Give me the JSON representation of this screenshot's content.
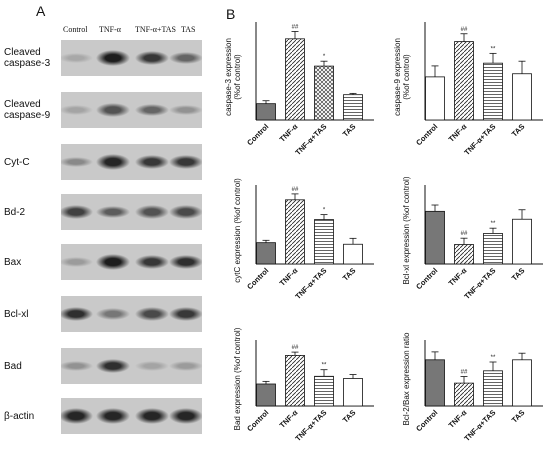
{
  "panel_a": {
    "letter": "A",
    "columns": [
      "Control",
      "TNF-α",
      "TNF-α+TAS",
      "TAS"
    ],
    "blots": [
      {
        "label_lines": [
          "Cleaved",
          "caspase-3"
        ],
        "intensities": [
          0.18,
          0.95,
          0.8,
          0.55
        ]
      },
      {
        "label_lines": [
          "Cleaved",
          "caspase-9"
        ],
        "intensities": [
          0.2,
          0.65,
          0.55,
          0.3
        ]
      },
      {
        "label_lines": [
          "Cyt-C"
        ],
        "intensities": [
          0.35,
          0.9,
          0.8,
          0.8
        ]
      },
      {
        "label_lines": [
          "Bd-2"
        ],
        "intensities": [
          0.75,
          0.6,
          0.65,
          0.7
        ]
      },
      {
        "label_lines": [
          "Bax"
        ],
        "intensities": [
          0.25,
          0.95,
          0.8,
          0.85
        ]
      },
      {
        "label_lines": [
          "Bcl-xl"
        ],
        "intensities": [
          0.85,
          0.45,
          0.7,
          0.8
        ]
      },
      {
        "label_lines": [
          "Bad"
        ],
        "intensities": [
          0.3,
          0.85,
          0.2,
          0.25
        ]
      },
      {
        "label_lines": [
          "β-actin"
        ],
        "intensities": [
          0.9,
          0.9,
          0.9,
          0.9
        ]
      }
    ]
  },
  "panel_b": {
    "letter": "B"
  },
  "chart_data": [
    {
      "type": "bar",
      "categories": [
        "Control",
        "TNF-α",
        "TNF-α+TAS",
        "TAS"
      ],
      "values": [
        100,
        497,
        330,
        155
      ],
      "errors": [
        18,
        45,
        30,
        8
      ],
      "sig": [
        "",
        "##",
        "*",
        ""
      ],
      "ylabel": "caspase-3 expression\n(%of control)",
      "ylim": [
        0,
        600
      ],
      "patterns": [
        "solid",
        "hatch",
        "cross",
        "hlines"
      ]
    },
    {
      "type": "bar",
      "categories": [
        "Control",
        "TNF-α",
        "TNF-α+TAS",
        "TAS"
      ],
      "values": [
        110,
        200,
        145,
        118
      ],
      "errors": [
        28,
        20,
        25,
        32
      ],
      "sig": [
        "",
        "##",
        "**",
        ""
      ],
      "ylabel": "caspase-9 expression\n(%of control)",
      "ylim": [
        0,
        250
      ],
      "patterns": [
        "white",
        "hatch",
        "hlines",
        "white"
      ]
    },
    {
      "type": "bar",
      "categories": [
        "Control",
        "TNF-α",
        "TNF-α+TAS",
        "TAS"
      ],
      "values": [
        108,
        325,
        225,
        100
      ],
      "errors": [
        12,
        30,
        25,
        30
      ],
      "sig": [
        "",
        "##",
        "*",
        ""
      ],
      "ylabel": "cytC expression (%of control)",
      "ylim": [
        0,
        400
      ],
      "patterns": [
        "solid",
        "hatch",
        "hlines",
        "white"
      ]
    },
    {
      "type": "bar",
      "categories": [
        "Control",
        "TNF-α",
        "TNF-α+TAS",
        "TAS"
      ],
      "values": [
        100,
        37,
        58,
        85
      ],
      "errors": [
        12,
        12,
        10,
        18
      ],
      "sig": [
        "",
        "##",
        "**",
        ""
      ],
      "ylabel": "Bcl-xl expression (%of control)",
      "ylim": [
        0,
        150
      ],
      "patterns": [
        "solid",
        "hatch",
        "hlines",
        "white"
      ]
    },
    {
      "type": "bar",
      "categories": [
        "Control",
        "TNF-α",
        "TNF-α+TAS",
        "TAS"
      ],
      "values": [
        100,
        230,
        135,
        125
      ],
      "errors": [
        12,
        15,
        30,
        18
      ],
      "sig": [
        "",
        "##",
        "**",
        ""
      ],
      "ylabel": "Bad expression (%of control)",
      "ylim": [
        0,
        300
      ],
      "patterns": [
        "solid",
        "hatch",
        "hlines",
        "white"
      ]
    },
    {
      "type": "bar",
      "categories": [
        "Control",
        "TNF-α",
        "TNF-α+TAS",
        "TAS"
      ],
      "values": [
        105,
        52,
        80,
        105
      ],
      "errors": [
        18,
        15,
        20,
        15
      ],
      "sig": [
        "",
        "##",
        "**",
        ""
      ],
      "ylabel": "Bcl-2/Bax expression ratio",
      "ylim": [
        0,
        150
      ],
      "patterns": [
        "solid",
        "hatch",
        "hlines",
        "white"
      ]
    }
  ]
}
